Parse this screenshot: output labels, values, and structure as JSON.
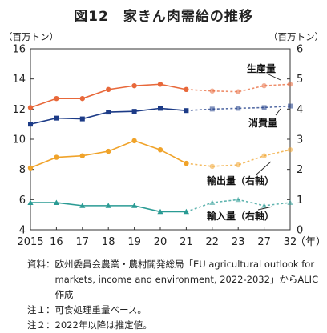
{
  "title": "図12　家きん肉需給の推移",
  "chart_data": {
    "type": "line",
    "title": "図12　家きん肉需給の推移",
    "y_left": {
      "unit": "（百万トン）",
      "range": [
        4,
        16
      ],
      "ticks": [
        "4",
        "6",
        "8",
        "10",
        "12",
        "14",
        "16"
      ]
    },
    "y_right": {
      "unit": "（百万トン）",
      "range": [
        0,
        6
      ],
      "ticks": [
        "0",
        "1",
        "2",
        "3",
        "4",
        "5",
        "6"
      ]
    },
    "x_labels": [
      "2015",
      "16",
      "17",
      "18",
      "19",
      "20",
      "21",
      "22",
      "23",
      "27",
      "32"
    ],
    "x_unit": "（年）",
    "estimate_start_index": 6,
    "series": [
      {
        "name": "生産量",
        "axis": "left",
        "color": "#e8683a",
        "marker": "circle",
        "values": [
          12.1,
          12.7,
          12.7,
          13.3,
          13.55,
          13.65,
          13.3,
          13.2,
          13.15,
          13.55,
          13.65
        ]
      },
      {
        "name": "消費量",
        "axis": "left",
        "color": "#1c3b87",
        "marker": "square",
        "values": [
          11.0,
          11.4,
          11.35,
          11.8,
          11.85,
          12.05,
          11.9,
          12.0,
          12.05,
          12.1,
          12.2
        ]
      },
      {
        "name": "輸出量（右軸）",
        "axis": "right",
        "color": "#f0a32a",
        "marker": "circle",
        "values": [
          2.05,
          2.4,
          2.45,
          2.6,
          2.95,
          2.65,
          2.2,
          2.1,
          2.15,
          2.45,
          2.65
        ]
      },
      {
        "name": "輸入量（右軸）",
        "axis": "right",
        "color": "#2a9b94",
        "marker": "triangle",
        "values": [
          0.9,
          0.9,
          0.8,
          0.8,
          0.8,
          0.6,
          0.6,
          0.9,
          1.0,
          0.8,
          0.9
        ]
      }
    ]
  },
  "notes": {
    "source_label": "資料：",
    "source_text": "欧州委員会農業・農村開発総局「EU agricultural outlook for markets, income and environment, 2022-2032」からALIC作成",
    "note1_label": "注１：",
    "note1_text": "可食処理重量ベース。",
    "note2_label": "注２：",
    "note2_text": "2022年以降は推定値。"
  }
}
